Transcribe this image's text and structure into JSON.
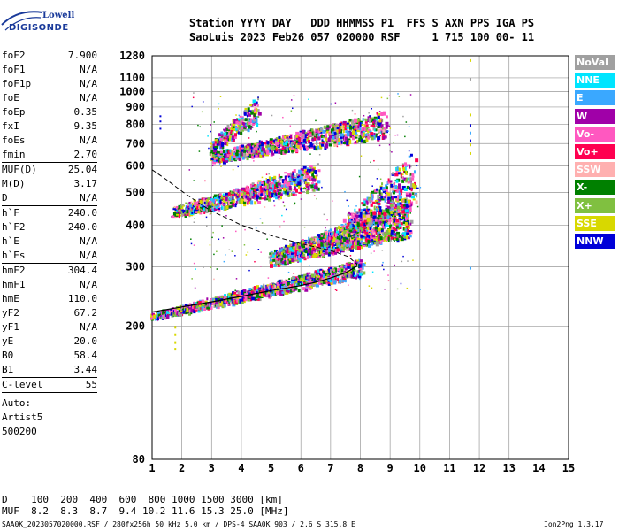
{
  "logo": {
    "top": "Lowell",
    "bottom": "DIGISONDE"
  },
  "header": {
    "line1": "Station YYYY DAY   DDD HHMMSS P1  FFS S AXN PPS IGA PS",
    "line2": "SaoLuis 2023 Feb26 057 020000 RSF     1 715 100 00- 11"
  },
  "params": {
    "group1": [
      {
        "k": "foF2",
        "v": "7.900"
      },
      {
        "k": "foF1",
        "v": "N/A"
      },
      {
        "k": "foF1p",
        "v": "N/A"
      },
      {
        "k": "foE",
        "v": "N/A"
      },
      {
        "k": "foEp",
        "v": "0.35"
      },
      {
        "k": "fxI",
        "v": "9.35"
      },
      {
        "k": "foEs",
        "v": "N/A"
      },
      {
        "k": "fmin",
        "v": "2.70"
      }
    ],
    "group2": [
      {
        "k": "MUF(D)",
        "v": "25.04"
      },
      {
        "k": "M(D)",
        "v": "3.17"
      },
      {
        "k": "D",
        "v": "N/A"
      }
    ],
    "group3": [
      {
        "k": "h`F",
        "v": "240.0"
      },
      {
        "k": "h`F2",
        "v": "240.0"
      },
      {
        "k": "h`E",
        "v": "N/A"
      },
      {
        "k": "h`Es",
        "v": "N/A"
      }
    ],
    "group4": [
      {
        "k": "hmF2",
        "v": "304.4"
      },
      {
        "k": "hmF1",
        "v": "N/A"
      },
      {
        "k": "hmE",
        "v": "110.0"
      },
      {
        "k": "yF2",
        "v": "67.2"
      },
      {
        "k": "yF1",
        "v": "N/A"
      },
      {
        "k": "yE",
        "v": "20.0"
      },
      {
        "k": "B0",
        "v": "58.4"
      },
      {
        "k": "B1",
        "v": "3.44"
      }
    ],
    "group5": [
      {
        "k": "C-level",
        "v": "55"
      }
    ],
    "auto": [
      "Auto:",
      "Artist5",
      "500200"
    ]
  },
  "bottom": {
    "d_line": "D    100  200  400  600  800 1000 1500 3000 [km]",
    "muf_line": "MUF  8.2  8.3  8.7  9.4 10.2 11.6 15.3 25.0 [MHz]"
  },
  "footer": {
    "left": "SAA0K_2023057020000.RSF / 280fx256h 50 kHz 5.0 km / DPS-4 SAA0K 903 / 2.6 S 315.8 E",
    "right": "Ion2Png 1.3.17"
  },
  "legend": [
    {
      "label": "NoVal",
      "color": "#a0a0a0"
    },
    {
      "label": "NNE",
      "color": "#00e5ff"
    },
    {
      "label": "E",
      "color": "#3aa8ff"
    },
    {
      "label": "W",
      "color": "#a000a8"
    },
    {
      "label": "Vo-",
      "color": "#ff58c0"
    },
    {
      "label": "Vo+",
      "color": "#ff0050"
    },
    {
      "label": "SSW",
      "color": "#ffb0b0"
    },
    {
      "label": "X-",
      "color": "#008000"
    },
    {
      "label": "X+",
      "color": "#80c040"
    },
    {
      "label": "SSE",
      "color": "#d8d800"
    },
    {
      "label": "NNW",
      "color": "#0000d8"
    }
  ],
  "chart_data": {
    "type": "scatter",
    "title": "",
    "xlabel": "",
    "ylabel": "",
    "xlim": [
      1,
      15
    ],
    "ylim": [
      80,
      1280
    ],
    "yscale": "log",
    "x_ticks": [
      1,
      2,
      3,
      4,
      5,
      6,
      7,
      8,
      9,
      10,
      11,
      12,
      13,
      14,
      15
    ],
    "y_ticks": [
      80,
      200,
      300,
      400,
      500,
      600,
      700,
      800,
      900,
      1000,
      1100,
      1280
    ],
    "grid": true,
    "profile_solid": {
      "x": [
        1.0,
        1.5,
        2.0,
        3.0,
        4.0,
        5.0,
        6.0,
        6.5,
        7.0,
        7.5,
        7.9
      ],
      "y": [
        220,
        224,
        228,
        236,
        245,
        255,
        264,
        270,
        278,
        288,
        302
      ]
    },
    "profile_dashed": {
      "x": [
        1.0,
        1.5,
        2.0,
        2.5,
        3.0,
        3.5,
        4.0,
        5.0,
        6.0,
        7.0,
        7.6,
        7.9
      ],
      "y": [
        585,
        545,
        505,
        470,
        440,
        420,
        400,
        372,
        352,
        336,
        322,
        305
      ]
    },
    "trace_clusters": [
      {
        "name": "F2 o-trace",
        "x_range": [
          1.0,
          8.0
        ],
        "y_start": 215,
        "y_end": 300
      },
      {
        "name": "F2 upper band",
        "x_range": [
          5.0,
          9.6
        ],
        "y_start": 320,
        "y_end": 420
      },
      {
        "name": "2F multihop",
        "x_range": [
          1.7,
          6.5
        ],
        "y_start": 440,
        "y_end": 560
      },
      {
        "name": "3F multihop",
        "x_range": [
          3.0,
          8.8
        ],
        "y_start": 640,
        "y_end": 800
      },
      {
        "name": "4F multihop",
        "x_range": [
          3.0,
          4.5
        ],
        "y_start": 690,
        "y_end": 880
      },
      {
        "name": "trailing spread",
        "x_range": [
          7.5,
          9.8
        ],
        "y_start": 400,
        "y_end": 560
      }
    ]
  }
}
